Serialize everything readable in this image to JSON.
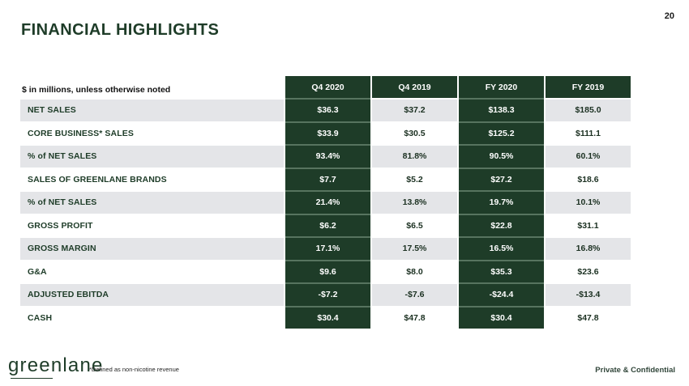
{
  "page": {
    "number": "20",
    "title": "FINANCIAL HIGHLIGHTS",
    "logo_text": "greenlane",
    "footnote": "*Defined as non-nicotine revenue",
    "footer_right": "Private & Confidential"
  },
  "colors": {
    "dark_green": "#1e3c28",
    "row_gray": "#e4e5e8",
    "separator_green": "#57745f",
    "value_text_2019": "#1b3021",
    "header_text": "#ffffff",
    "title_text": "#1e3c28"
  },
  "table": {
    "note": "$ in millions, unless otherwise noted",
    "columns": [
      "Q4 2020",
      "Q4 2019",
      "FY 2020",
      "FY 2019"
    ],
    "rows": [
      {
        "label": "NET SALES",
        "values": [
          "$36.3",
          "$37.2",
          "$138.3",
          "$185.0"
        ]
      },
      {
        "label": "CORE BUSINESS* SALES",
        "values": [
          "$33.9",
          "$30.5",
          "$125.2",
          "$111.1"
        ]
      },
      {
        "label": "% of NET SALES",
        "values": [
          "93.4%",
          "81.8%",
          "90.5%",
          "60.1%"
        ]
      },
      {
        "label": "SALES OF GREENLANE BRANDS",
        "values": [
          "$7.7",
          "$5.2",
          "$27.2",
          "$18.6"
        ]
      },
      {
        "label": "% of NET SALES",
        "values": [
          "21.4%",
          "13.8%",
          "19.7%",
          "10.1%"
        ]
      },
      {
        "label": "GROSS PROFIT",
        "values": [
          "$6.2",
          "$6.5",
          "$22.8",
          "$31.1"
        ]
      },
      {
        "label": "GROSS MARGIN",
        "values": [
          "17.1%",
          "17.5%",
          "16.5%",
          "16.8%"
        ]
      },
      {
        "label": "G&A",
        "values": [
          "$9.6",
          "$8.0",
          "$35.3",
          "$23.6"
        ]
      },
      {
        "label": "ADJUSTED EBITDA",
        "values": [
          "-$7.2",
          "-$7.6",
          "-$24.4",
          "-$13.4"
        ]
      },
      {
        "label": "CASH",
        "values": [
          "$30.4",
          "$47.8",
          "$30.4",
          "$47.8"
        ]
      }
    ]
  }
}
